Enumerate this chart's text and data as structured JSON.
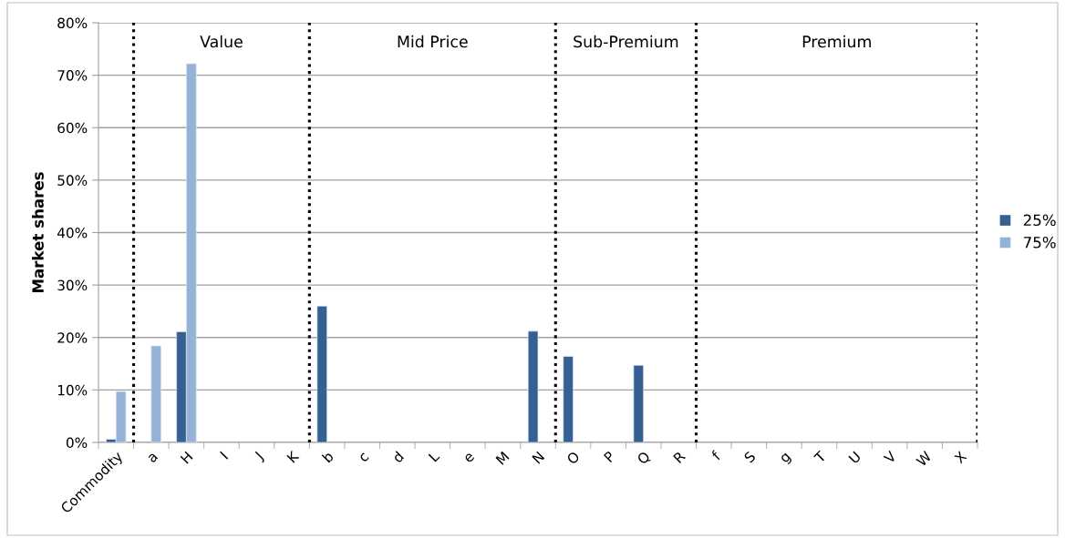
{
  "chart_data": {
    "type": "bar",
    "ylabel": "Market shares",
    "categories": [
      "Commodity",
      "a",
      "H",
      "I",
      "J",
      "K",
      "b",
      "c",
      "d",
      "L",
      "e",
      "M",
      "N",
      "O",
      "P",
      "Q",
      "R",
      "f",
      "S",
      "g",
      "T",
      "U",
      "V",
      "W",
      "X"
    ],
    "series": [
      {
        "name": "25%",
        "color": "#376092",
        "values": [
          0.6,
          null,
          21.1,
          null,
          null,
          null,
          26.0,
          null,
          null,
          null,
          null,
          null,
          21.2,
          16.4,
          null,
          14.7,
          null,
          null,
          null,
          null,
          null,
          null,
          null,
          null,
          null
        ]
      },
      {
        "name": "75%",
        "color": "#95b3d7",
        "values": [
          9.7,
          18.4,
          72.2,
          null,
          null,
          null,
          null,
          null,
          null,
          null,
          null,
          null,
          null,
          null,
          null,
          null,
          null,
          null,
          null,
          null,
          null,
          null,
          null,
          null,
          null
        ]
      }
    ],
    "ylim": [
      0,
      80
    ],
    "yticks": [
      {
        "value": 0,
        "label": "0%"
      },
      {
        "value": 10,
        "label": "10%"
      },
      {
        "value": 20,
        "label": "20%"
      },
      {
        "value": 30,
        "label": "30%"
      },
      {
        "value": 40,
        "label": "40%"
      },
      {
        "value": 50,
        "label": "50%"
      },
      {
        "value": 60,
        "label": "60%"
      },
      {
        "value": 70,
        "label": "70%"
      },
      {
        "value": 80,
        "label": "80%"
      }
    ],
    "annotations": [
      "Value",
      "Mid Price",
      "Sub-Premium",
      "Premium"
    ],
    "grid": "y",
    "legend": "right"
  }
}
